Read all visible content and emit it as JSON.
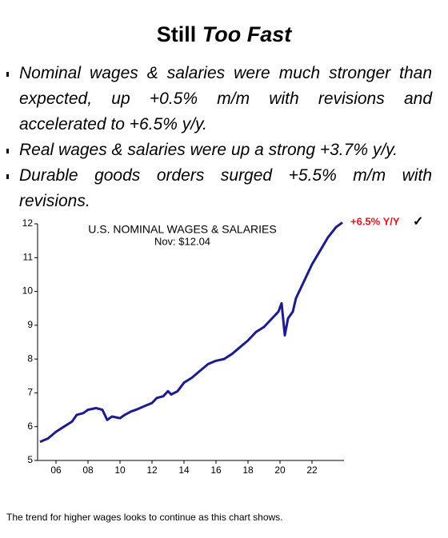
{
  "header": {
    "title_parts": [
      "Still",
      "Too Fast"
    ]
  },
  "bullets": [
    "Nominal wages & salaries were much stronger than expected, up +0.5% m/m with revisions and accelerated to +6.5% y/y.",
    "Real wages & salaries were up a strong +3.7% y/y.",
    "Durable goods orders surged +5.5% m/m with revisions."
  ],
  "chart_data": {
    "type": "line",
    "title": "U.S. NOMINAL WAGES & SALARIES",
    "subtitle": "Nov: $12.04",
    "annotations": [
      "+6.5% Y/Y",
      "✓"
    ],
    "color": "#1c1c8f",
    "x": [
      2005.0,
      2005.5,
      2006.0,
      2006.5,
      2007.0,
      2007.3,
      2007.7,
      2008.0,
      2008.5,
      2008.9,
      2009.2,
      2009.5,
      2010.0,
      2010.3,
      2010.7,
      2011.0,
      2011.5,
      2012.0,
      2012.3,
      2012.7,
      2013.0,
      2013.2,
      2013.6,
      2014.0,
      2014.5,
      2015.0,
      2015.5,
      2016.0,
      2016.5,
      2017.0,
      2017.5,
      2018.0,
      2018.5,
      2019.0,
      2019.5,
      2019.9,
      2020.1,
      2020.3,
      2020.5,
      2020.8,
      2021.0,
      2021.5,
      2022.0,
      2022.5,
      2023.0,
      2023.5,
      2023.9
    ],
    "values": [
      5.55,
      5.65,
      5.85,
      6.0,
      6.15,
      6.35,
      6.4,
      6.5,
      6.55,
      6.5,
      6.2,
      6.3,
      6.25,
      6.35,
      6.45,
      6.5,
      6.6,
      6.7,
      6.85,
      6.9,
      7.05,
      6.95,
      7.05,
      7.3,
      7.45,
      7.65,
      7.85,
      7.95,
      8.0,
      8.15,
      8.35,
      8.55,
      8.8,
      8.95,
      9.2,
      9.4,
      9.65,
      8.7,
      9.2,
      9.4,
      9.8,
      10.3,
      10.8,
      11.2,
      11.6,
      11.9,
      12.04
    ],
    "xlim": [
      2005,
      2024
    ],
    "xticks": [
      {
        "value": 2006,
        "label": "06"
      },
      {
        "value": 2008,
        "label": "08"
      },
      {
        "value": 2010,
        "label": "10"
      },
      {
        "value": 2012,
        "label": "12"
      },
      {
        "value": 2014,
        "label": "14"
      },
      {
        "value": 2016,
        "label": "16"
      },
      {
        "value": 2018,
        "label": "18"
      },
      {
        "value": 2020,
        "label": "20"
      },
      {
        "value": 2022,
        "label": "22"
      }
    ],
    "ylim": [
      5,
      12
    ],
    "yticks": [
      5,
      6,
      7,
      8,
      9,
      10,
      11,
      12
    ]
  },
  "caption": "The trend for higher wages looks to continue as this chart shows."
}
